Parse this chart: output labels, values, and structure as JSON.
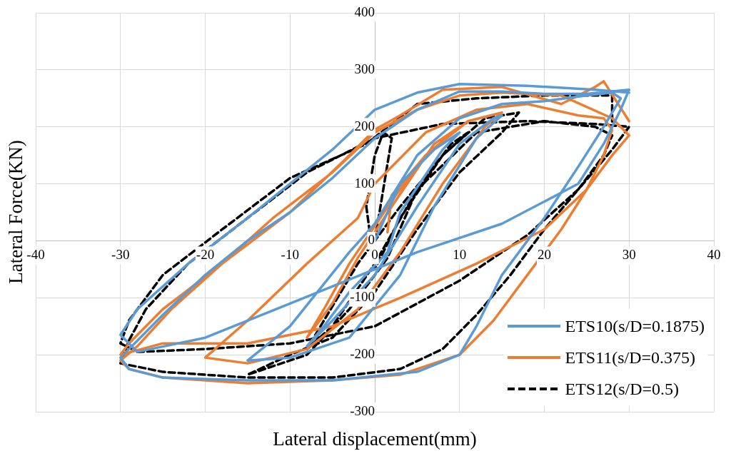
{
  "chart_data": {
    "type": "line",
    "xlabel": "Lateral displacement(mm)",
    "ylabel": "Lateral Force(KN)",
    "xlim": [
      -40,
      40
    ],
    "xticks": [
      -40,
      -30,
      -20,
      -10,
      0,
      10,
      20,
      30,
      40
    ],
    "ylim": [
      -300,
      400
    ],
    "yticks": [
      -300,
      -200,
      -100,
      0,
      100,
      200,
      300,
      400
    ],
    "grid": true,
    "legend": "bottom right",
    "marker": "none",
    "series": [
      {
        "name": "ETS10(s/D=0.1875)",
        "color": "#5b9bd5",
        "line_style": "solid",
        "x": [
          0,
          3,
          7,
          10,
          8,
          3,
          1.5,
          -3,
          -6,
          -8,
          -5,
          0,
          5,
          10,
          14,
          15,
          12,
          7,
          3,
          -3,
          -10,
          -15,
          -10,
          -3,
          0,
          5,
          10,
          15,
          20,
          25,
          28,
          29,
          27,
          24,
          20,
          15,
          12,
          10,
          5,
          -5,
          -15,
          -25,
          -29,
          -30,
          -28,
          -25,
          -20,
          -15,
          -10,
          -5,
          0,
          5,
          10,
          15,
          20,
          25,
          30,
          29,
          27,
          24,
          15,
          5,
          0,
          -10,
          -20,
          -28,
          -30,
          -28,
          -22,
          -15,
          -5,
          0,
          5,
          10,
          18,
          26,
          30
        ],
        "values": [
          0,
          100,
          160,
          190,
          160,
          50,
          -20,
          -90,
          -150,
          -185,
          -140,
          -60,
          60,
          170,
          215,
          220,
          180,
          60,
          -60,
          -170,
          -205,
          -210,
          -150,
          -20,
          30,
          150,
          215,
          240,
          245,
          255,
          260,
          250,
          200,
          130,
          40,
          -60,
          -150,
          -200,
          -230,
          -245,
          -245,
          -240,
          -225,
          -205,
          -175,
          -130,
          -60,
          0,
          50,
          110,
          180,
          230,
          262,
          262,
          258,
          258,
          265,
          230,
          170,
          100,
          30,
          -20,
          -50,
          -110,
          -170,
          -195,
          -165,
          -120,
          -40,
          40,
          160,
          230,
          260,
          275,
          272,
          265,
          260
        ]
      },
      {
        "name": "ETS11(s/D=0.375)",
        "color": "#ed7d31",
        "line_style": "solid",
        "x": [
          1.5,
          2,
          6,
          10,
          7,
          2,
          -2,
          -5,
          -8,
          -6,
          -3,
          2,
          6,
          11,
          15,
          13,
          8,
          3,
          -2,
          -8,
          -15,
          -20,
          -15,
          -8,
          -2,
          0,
          6,
          12,
          18,
          24,
          27,
          28,
          27,
          25,
          22,
          18,
          14,
          10,
          3,
          -5,
          -15,
          -25,
          -29,
          -30,
          -28,
          -24,
          -18,
          -12,
          -5,
          0,
          5,
          10,
          15,
          22,
          28,
          30,
          28,
          25,
          20,
          12,
          3,
          -5,
          -15,
          -25,
          -30,
          -29,
          -25,
          -18,
          -10,
          -3,
          0,
          3,
          8,
          15,
          22,
          26,
          27,
          30
        ],
        "values": [
          15,
          80,
          150,
          200,
          170,
          60,
          -30,
          -110,
          -170,
          -120,
          -40,
          70,
          150,
          210,
          225,
          200,
          100,
          -20,
          -120,
          -190,
          -215,
          -205,
          -140,
          -40,
          40,
          100,
          190,
          230,
          240,
          220,
          215,
          195,
          150,
          90,
          20,
          -60,
          -140,
          -200,
          -235,
          -245,
          -250,
          -240,
          -225,
          -210,
          -185,
          -120,
          -40,
          40,
          120,
          190,
          230,
          255,
          260,
          255,
          215,
          185,
          150,
          90,
          20,
          -40,
          -100,
          -150,
          -180,
          -180,
          -200,
          -180,
          -120,
          -40,
          50,
          150,
          195,
          220,
          265,
          270,
          240,
          270,
          280,
          210
        ]
      },
      {
        "name": "ETS12(s/D=0.5)",
        "color": "#000000",
        "line_style": "dashed",
        "x": [
          0,
          2,
          1,
          0,
          -1,
          0,
          3,
          8,
          11,
          9,
          5,
          0,
          -5,
          -8,
          -6,
          -2,
          3,
          8,
          13,
          17,
          15,
          10,
          5,
          0,
          -5,
          -10,
          -15,
          -8,
          -3,
          1.5,
          5,
          12,
          20,
          26,
          28,
          27,
          24,
          20,
          16,
          12,
          8,
          3,
          -5,
          -15,
          -25,
          -30,
          -29,
          -27,
          -22,
          -15,
          -8,
          0,
          8,
          18,
          26,
          30,
          28,
          24,
          18,
          10,
          0,
          -10,
          -20,
          -28,
          -30,
          -29,
          -25,
          -18,
          -10,
          -1,
          5,
          12,
          20,
          28,
          28
        ],
        "values": [
          0,
          180,
          190,
          150,
          60,
          -50,
          40,
          150,
          190,
          170,
          90,
          -40,
          -150,
          -190,
          -140,
          -40,
          60,
          150,
          215,
          225,
          190,
          120,
          20,
          -90,
          -170,
          -200,
          -235,
          -200,
          -120,
          -30,
          90,
          190,
          210,
          200,
          185,
          150,
          90,
          20,
          -60,
          -130,
          -190,
          -225,
          -240,
          -240,
          -230,
          -215,
          -175,
          -120,
          -40,
          40,
          120,
          180,
          205,
          210,
          205,
          200,
          160,
          90,
          10,
          -70,
          -150,
          -180,
          -190,
          -195,
          -180,
          -140,
          -60,
          20,
          110,
          170,
          240,
          250,
          255,
          255,
          200
        ]
      }
    ]
  }
}
